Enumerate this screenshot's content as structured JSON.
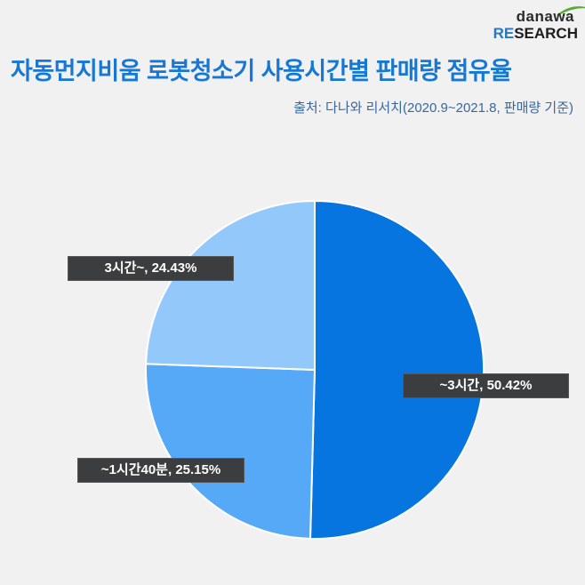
{
  "page": {
    "background_color": "#f1f1f1"
  },
  "logo": {
    "brand": "danawa",
    "research_re": "RE",
    "research_rest": "SEARCH",
    "swoosh_color": "#5aa939",
    "re_color": "#2a78bb",
    "text_color": "#1d1d1d"
  },
  "header": {
    "title": "자동먼지비움 로봇청소기 사용시간별 판매량 점유율",
    "title_color": "#1678d4",
    "source": "출처: 다나와 리서치(2020.9~2021.8, 판매량 기준)",
    "source_color": "#3a689e"
  },
  "chart_data": {
    "type": "pie",
    "title": "자동먼지비움 로봇청소기 사용시간별 판매량 점유율",
    "unit": "%",
    "direction": "clockwise",
    "start_angle_deg": 0,
    "center": [
      354,
      416
    ],
    "radius": 190,
    "divider_color": "#ffffff",
    "label_box_color": "#3c3d3f",
    "label_text_color": "#ffffff",
    "slices": [
      {
        "label": "~3시간",
        "value": 50.42,
        "color": "#0675e0",
        "display": "~3시간,  50.42%"
      },
      {
        "label": "~1시간40분",
        "value": 25.15,
        "color": "#56a9f7",
        "display": "~1시간40분,  25.15%"
      },
      {
        "label": "3시간~",
        "value": 24.43,
        "color": "#92c8fa",
        "display": "3시간~,  24.43%"
      }
    ]
  }
}
